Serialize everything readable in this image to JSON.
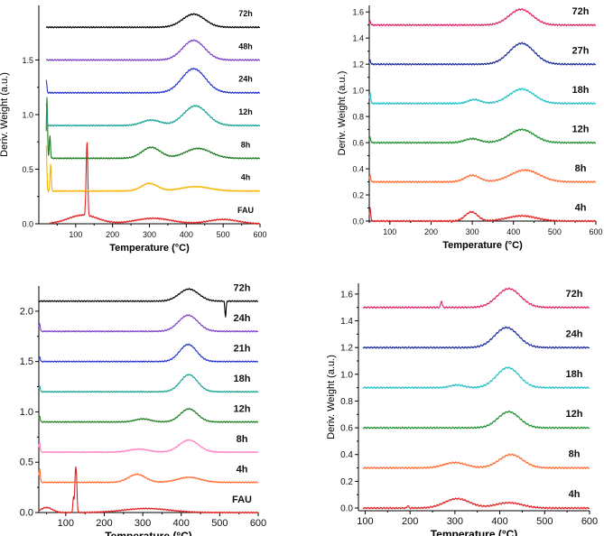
{
  "chart_data": [
    {
      "type": "line",
      "panel": "top-left",
      "xlabel": "Temperature (°C)",
      "ylabel": "Deriv. Weight (a.u.)",
      "xlim": [
        0,
        600
      ],
      "ylim": [
        0,
        2.0
      ],
      "x_ticks": [
        100,
        200,
        300,
        400,
        500,
        600
      ],
      "y_ticks": [
        0.0,
        0.5,
        1.0,
        1.5
      ],
      "x_tick_labels": [
        "100",
        "200",
        "300",
        "400",
        "500",
        "600"
      ],
      "y_tick_labels": [
        "0.0",
        "0.5",
        "1.0",
        "1.5"
      ],
      "series": [
        {
          "name": "FAU",
          "color": "#e02020",
          "offset": 0.0,
          "start": 30,
          "peaks": [
            [
              120,
              0.08,
              40
            ],
            [
              310,
              0.05,
              50
            ],
            [
              500,
              0.04,
              40
            ]
          ],
          "spikes": [
            [
              128,
              0.15
            ],
            [
              130,
              0.4
            ],
            [
              132,
              0.38
            ]
          ]
        },
        {
          "name": "4h",
          "color": "#f4b400",
          "offset": 0.3,
          "start": 20,
          "peaks": [
            [
              300,
              0.07,
              22
            ],
            [
              425,
              0.04,
              40
            ]
          ],
          "spikes": [
            [
              20,
              0.42
            ],
            [
              32,
              0.25
            ]
          ]
        },
        {
          "name": "8h",
          "color": "#1e7b1e",
          "offset": 0.6,
          "start": 20,
          "peaks": [
            [
              305,
              0.1,
              25
            ],
            [
              432,
              0.09,
              35
            ]
          ],
          "spikes": [
            [
              22,
              0.55
            ],
            [
              30,
              0.2
            ]
          ]
        },
        {
          "name": "12h",
          "color": "#17a394",
          "offset": 0.9,
          "start": 20,
          "peaks": [
            [
              305,
              0.05,
              25
            ],
            [
              425,
              0.18,
              32
            ]
          ],
          "spikes": [
            [
              20,
              0.2
            ]
          ]
        },
        {
          "name": "24h",
          "color": "#2233cc",
          "offset": 1.2,
          "start": 20,
          "peaks": [
            [
              420,
              0.22,
              32
            ]
          ],
          "spikes": [
            [
              20,
              0.12
            ]
          ]
        },
        {
          "name": "48h",
          "color": "#7a3ec8",
          "offset": 1.5,
          "start": 20,
          "peaks": [
            [
              420,
              0.18,
              30
            ]
          ],
          "spikes": []
        },
        {
          "name": "72h",
          "color": "#000000",
          "offset": 1.8,
          "start": 20,
          "peaks": [
            [
              420,
              0.12,
              30
            ]
          ],
          "spikes": []
        }
      ]
    },
    {
      "type": "line",
      "panel": "top-right",
      "xlabel": "Temperature (°C)",
      "ylabel": "Deriv. Weight (a.u.)",
      "xlim": [
        50,
        600
      ],
      "ylim": [
        0,
        1.65
      ],
      "x_ticks": [
        100,
        200,
        300,
        400,
        500,
        600
      ],
      "y_ticks": [
        0.0,
        0.2,
        0.4,
        0.6,
        0.8,
        1.0,
        1.2,
        1.4,
        1.6
      ],
      "x_tick_labels": [
        "100",
        "200",
        "300",
        "400",
        "500",
        "600"
      ],
      "y_tick_labels": [
        "0.0",
        "0.2",
        "0.4",
        "0.6",
        "0.8",
        "1.0",
        "1.2",
        "1.4",
        "1.6"
      ],
      "series": [
        {
          "name": "4h",
          "color": "#e02020",
          "offset": 0.0,
          "start": 50,
          "peaks": [
            [
              298,
              0.07,
              15
            ],
            [
              420,
              0.04,
              35
            ]
          ],
          "spikes": [
            [
              52,
              0.1
            ]
          ]
        },
        {
          "name": "8h",
          "color": "#ff6a30",
          "offset": 0.3,
          "start": 50,
          "peaks": [
            [
              300,
              0.05,
              18
            ],
            [
              428,
              0.09,
              35
            ]
          ],
          "spikes": [
            [
              52,
              0.05
            ]
          ]
        },
        {
          "name": "12h",
          "color": "#1e8f2e",
          "offset": 0.6,
          "start": 50,
          "peaks": [
            [
              300,
              0.03,
              18
            ],
            [
              420,
              0.1,
              30
            ]
          ],
          "spikes": [
            [
              52,
              0.04
            ]
          ]
        },
        {
          "name": "18h",
          "color": "#20c0c8",
          "offset": 0.9,
          "start": 50,
          "peaks": [
            [
              305,
              0.03,
              15
            ],
            [
              420,
              0.11,
              30
            ]
          ],
          "spikes": [
            [
              52,
              0.08
            ]
          ]
        },
        {
          "name": "27h",
          "color": "#1a2a9c",
          "offset": 1.2,
          "start": 50,
          "peaks": [
            [
              420,
              0.16,
              30
            ]
          ],
          "spikes": [
            [
              52,
              0.03
            ]
          ]
        },
        {
          "name": "72h",
          "color": "#e0206a",
          "offset": 1.5,
          "start": 50,
          "peaks": [
            [
              418,
              0.12,
              28
            ]
          ],
          "spikes": [
            [
              52,
              0.03
            ]
          ]
        }
      ]
    },
    {
      "type": "line",
      "panel": "bottom-left",
      "xlabel": "Temperature (°C)",
      "ylabel": "",
      "xlim": [
        30,
        600
      ],
      "ylim": [
        0,
        2.25
      ],
      "x_ticks": [
        100,
        200,
        300,
        400,
        500,
        600
      ],
      "y_ticks": [
        0.0,
        0.5,
        1.0,
        1.5,
        2.0
      ],
      "x_tick_labels": [
        "100",
        "200",
        "300",
        "400",
        "500",
        "600"
      ],
      "y_tick_labels": [
        "0.0",
        "0.5",
        "1.0",
        "1.5",
        "2.0"
      ],
      "series": [
        {
          "name": "FAU",
          "color": "#e02020",
          "offset": 0.0,
          "start": 30,
          "peaks": [
            [
              50,
              0.05,
              15
            ],
            [
              310,
              0.04,
              60
            ]
          ],
          "spikes": [
            [
              120,
              0.15
            ],
            [
              125,
              0.38
            ],
            [
              128,
              0.3
            ]
          ]
        },
        {
          "name": "4h",
          "color": "#ff6a30",
          "offset": 0.3,
          "start": 30,
          "peaks": [
            [
              285,
              0.08,
              22
            ],
            [
              420,
              0.05,
              30
            ]
          ],
          "spikes": [
            [
              32,
              0.14
            ]
          ]
        },
        {
          "name": "8h",
          "color": "#ff80c0",
          "offset": 0.6,
          "start": 30,
          "peaks": [
            [
              290,
              0.03,
              25
            ],
            [
              420,
              0.12,
              25
            ]
          ],
          "spikes": [
            [
              32,
              0.1
            ]
          ]
        },
        {
          "name": "12h",
          "color": "#1e7b1e",
          "offset": 0.9,
          "start": 30,
          "peaks": [
            [
              300,
              0.03,
              20
            ],
            [
              420,
              0.13,
              22
            ]
          ],
          "spikes": [
            [
              32,
              0.06
            ]
          ]
        },
        {
          "name": "18h",
          "color": "#17a394",
          "offset": 1.2,
          "start": 30,
          "peaks": [
            [
              420,
              0.17,
              22
            ]
          ],
          "spikes": [
            [
              32,
              0.06
            ]
          ]
        },
        {
          "name": "21h",
          "color": "#2233cc",
          "offset": 1.5,
          "start": 30,
          "peaks": [
            [
              418,
              0.17,
              22
            ]
          ],
          "spikes": [
            [
              32,
              0.05
            ]
          ]
        },
        {
          "name": "24h",
          "color": "#7a3ec8",
          "offset": 1.8,
          "start": 30,
          "peaks": [
            [
              418,
              0.16,
              25
            ]
          ],
          "spikes": [
            [
              32,
              0.08
            ]
          ]
        },
        {
          "name": "72h",
          "color": "#000000",
          "offset": 2.1,
          "start": 30,
          "peaks": [
            [
              420,
              0.12,
              25
            ]
          ],
          "spikes": [
            [
              515,
              -0.15
            ]
          ]
        }
      ]
    },
    {
      "type": "line",
      "panel": "bottom-right",
      "xlabel": "Temperature (°C)",
      "ylabel": "Deriv. Weight (a.u.)",
      "xlim": [
        85,
        600
      ],
      "ylim": [
        -0.02,
        1.68
      ],
      "x_ticks": [
        100,
        200,
        300,
        400,
        500,
        600
      ],
      "y_ticks": [
        0.0,
        0.2,
        0.4,
        0.6,
        0.8,
        1.0,
        1.2,
        1.4,
        1.6
      ],
      "x_tick_labels": [
        "100",
        "200",
        "300",
        "400",
        "500",
        "600"
      ],
      "y_tick_labels": [
        "0.0",
        "0.2",
        "0.4",
        "0.6",
        "0.8",
        "1.0",
        "1.2",
        "1.4",
        "1.6"
      ],
      "series": [
        {
          "name": "4h",
          "color": "#e02020",
          "offset": 0.0,
          "start": 95,
          "peaks": [
            [
              305,
              0.07,
              28
            ],
            [
              420,
              0.04,
              30
            ]
          ],
          "spikes": [
            [
              195,
              0.02
            ]
          ]
        },
        {
          "name": "8h",
          "color": "#ff6a30",
          "offset": 0.3,
          "start": 95,
          "peaks": [
            [
              300,
              0.04,
              25
            ],
            [
              425,
              0.1,
              26
            ]
          ],
          "spikes": []
        },
        {
          "name": "12h",
          "color": "#1e8f2e",
          "offset": 0.6,
          "start": 95,
          "peaks": [
            [
              420,
              0.12,
              24
            ]
          ],
          "spikes": []
        },
        {
          "name": "18h",
          "color": "#20c0c8",
          "offset": 0.9,
          "start": 95,
          "peaks": [
            [
              305,
              0.02,
              15
            ],
            [
              418,
              0.15,
              25
            ]
          ],
          "spikes": []
        },
        {
          "name": "24h",
          "color": "#1a2a9c",
          "offset": 1.2,
          "start": 95,
          "peaks": [
            [
              415,
              0.15,
              26
            ]
          ],
          "spikes": []
        },
        {
          "name": "72h",
          "color": "#e0206a",
          "offset": 1.5,
          "start": 95,
          "peaks": [
            [
              420,
              0.14,
              26
            ]
          ],
          "spikes": [
            [
              270,
              0.05
            ]
          ]
        }
      ]
    }
  ]
}
